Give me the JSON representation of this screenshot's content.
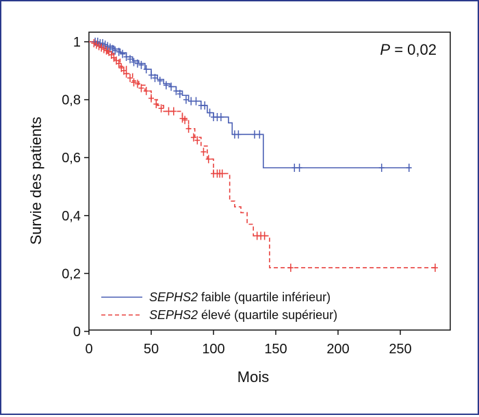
{
  "chart_data": {
    "type": "line",
    "chart_style": "kaplan-meier",
    "xlabel": "Mois",
    "ylabel": "Survie des patients",
    "xlim": [
      0,
      285
    ],
    "ylim": [
      0,
      1.02
    ],
    "xticks": [
      0,
      50,
      100,
      150,
      200,
      250
    ],
    "xtick_labels": [
      "0",
      "50",
      "100",
      "150",
      "200",
      "250"
    ],
    "yticks": [
      0,
      0.2,
      0.4,
      0.6,
      0.8,
      1
    ],
    "ytick_labels": [
      "0",
      "0,2",
      "0,4",
      "0,6",
      "0,8",
      "1"
    ],
    "grid": false,
    "legend_position": "bottom-left",
    "annotation": {
      "italic": "P",
      "rest": " = 0,02",
      "position": "top-right"
    },
    "series": [
      {
        "name": "SEPHS2 faible (quartile inférieur)",
        "legend_italic": "SEPHS2",
        "legend_rest": " faible (quartile inférieur)",
        "color": "#4a5fb4",
        "dash": "solid",
        "steps": [
          [
            0,
            1
          ],
          [
            5,
            0.995
          ],
          [
            10,
            0.99
          ],
          [
            15,
            0.985
          ],
          [
            20,
            0.975
          ],
          [
            25,
            0.962
          ],
          [
            30,
            0.948
          ],
          [
            35,
            0.935
          ],
          [
            40,
            0.925
          ],
          [
            45,
            0.905
          ],
          [
            50,
            0.885
          ],
          [
            55,
            0.87
          ],
          [
            60,
            0.855
          ],
          [
            65,
            0.845
          ],
          [
            70,
            0.83
          ],
          [
            75,
            0.815
          ],
          [
            80,
            0.795
          ],
          [
            90,
            0.78
          ],
          [
            95,
            0.755
          ],
          [
            100,
            0.74
          ],
          [
            112,
            0.72
          ],
          [
            115,
            0.68
          ],
          [
            140,
            0.565
          ],
          [
            258,
            0.565
          ]
        ],
        "censors": [
          [
            5,
            1
          ],
          [
            7,
            1
          ],
          [
            9,
            0.995
          ],
          [
            11,
            0.995
          ],
          [
            13,
            0.99
          ],
          [
            15,
            0.985
          ],
          [
            17,
            0.98
          ],
          [
            19,
            0.975
          ],
          [
            21,
            0.97
          ],
          [
            24,
            0.965
          ],
          [
            27,
            0.958
          ],
          [
            30,
            0.948
          ],
          [
            33,
            0.94
          ],
          [
            36,
            0.93
          ],
          [
            39,
            0.925
          ],
          [
            42,
            0.92
          ],
          [
            46,
            0.905
          ],
          [
            50,
            0.885
          ],
          [
            53,
            0.875
          ],
          [
            57,
            0.865
          ],
          [
            62,
            0.85
          ],
          [
            66,
            0.845
          ],
          [
            70,
            0.83
          ],
          [
            73,
            0.82
          ],
          [
            78,
            0.8
          ],
          [
            82,
            0.795
          ],
          [
            86,
            0.795
          ],
          [
            90,
            0.78
          ],
          [
            93,
            0.78
          ],
          [
            97,
            0.755
          ],
          [
            100,
            0.74
          ],
          [
            103,
            0.74
          ],
          [
            106,
            0.74
          ],
          [
            117,
            0.68
          ],
          [
            120,
            0.68
          ],
          [
            133,
            0.68
          ],
          [
            137,
            0.68
          ],
          [
            165,
            0.565
          ],
          [
            169,
            0.565
          ],
          [
            235,
            0.565
          ],
          [
            257,
            0.565
          ]
        ]
      },
      {
        "name": "SEPHS2 élevé (quartile supérieur)",
        "legend_italic": "SEPHS2",
        "legend_rest": " élevé (quartile supérieur)",
        "color": "#e8413e",
        "dash": "dashed",
        "steps": [
          [
            0,
            1
          ],
          [
            5,
            0.99
          ],
          [
            10,
            0.975
          ],
          [
            15,
            0.96
          ],
          [
            20,
            0.94
          ],
          [
            25,
            0.915
          ],
          [
            30,
            0.89
          ],
          [
            35,
            0.865
          ],
          [
            40,
            0.85
          ],
          [
            45,
            0.83
          ],
          [
            50,
            0.8
          ],
          [
            55,
            0.78
          ],
          [
            60,
            0.76
          ],
          [
            70,
            0.76
          ],
          [
            75,
            0.735
          ],
          [
            80,
            0.7
          ],
          [
            85,
            0.67
          ],
          [
            90,
            0.64
          ],
          [
            95,
            0.595
          ],
          [
            100,
            0.545
          ],
          [
            110,
            0.545
          ],
          [
            113,
            0.45
          ],
          [
            117,
            0.43
          ],
          [
            122,
            0.41
          ],
          [
            127,
            0.37
          ],
          [
            132,
            0.33
          ],
          [
            145,
            0.22
          ],
          [
            280,
            0.22
          ]
        ],
        "censors": [
          [
            4,
            0.995
          ],
          [
            6,
            0.99
          ],
          [
            8,
            0.985
          ],
          [
            10,
            0.98
          ],
          [
            12,
            0.975
          ],
          [
            14,
            0.97
          ],
          [
            16,
            0.965
          ],
          [
            18,
            0.955
          ],
          [
            20,
            0.945
          ],
          [
            22,
            0.935
          ],
          [
            24,
            0.925
          ],
          [
            26,
            0.91
          ],
          [
            28,
            0.9
          ],
          [
            30,
            0.89
          ],
          [
            33,
            0.875
          ],
          [
            36,
            0.86
          ],
          [
            39,
            0.855
          ],
          [
            42,
            0.84
          ],
          [
            46,
            0.83
          ],
          [
            50,
            0.805
          ],
          [
            54,
            0.785
          ],
          [
            58,
            0.77
          ],
          [
            64,
            0.76
          ],
          [
            68,
            0.76
          ],
          [
            75,
            0.735
          ],
          [
            77,
            0.73
          ],
          [
            80,
            0.7
          ],
          [
            84,
            0.67
          ],
          [
            87,
            0.66
          ],
          [
            92,
            0.62
          ],
          [
            96,
            0.595
          ],
          [
            100,
            0.545
          ],
          [
            103,
            0.545
          ],
          [
            105,
            0.545
          ],
          [
            107,
            0.545
          ],
          [
            135,
            0.33
          ],
          [
            138,
            0.33
          ],
          [
            141,
            0.33
          ],
          [
            162,
            0.22
          ],
          [
            278,
            0.22
          ]
        ]
      }
    ]
  }
}
